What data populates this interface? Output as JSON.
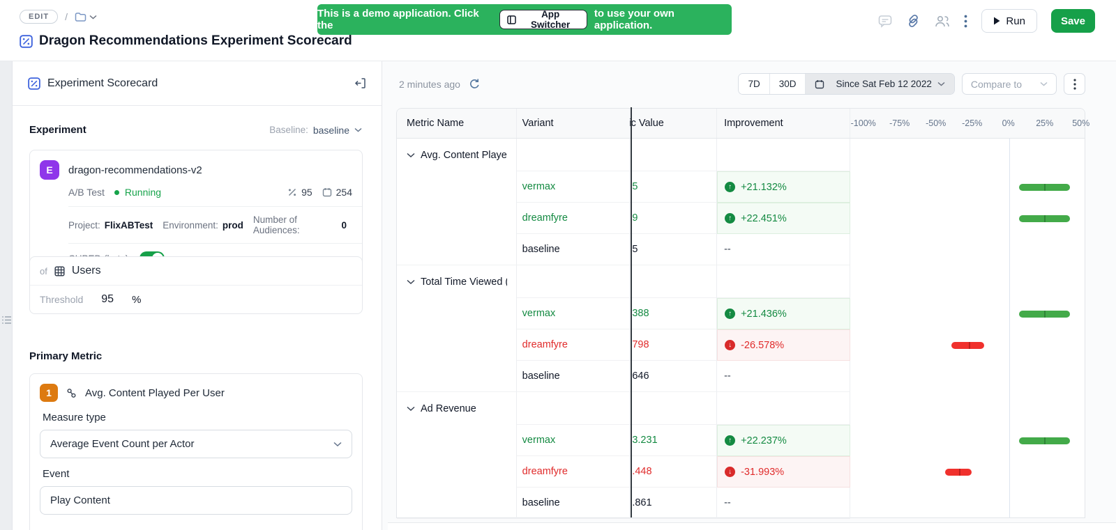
{
  "topbar": {
    "edit_badge": "EDIT",
    "breadcrumb_separator": "/",
    "banner": {
      "text_before": "This is a demo application. Click the",
      "button_label": "App Switcher",
      "text_after": "to use your own application."
    },
    "run_label": "Run",
    "save_label": "Save"
  },
  "page": {
    "title": "Dragon Recommendations Experiment Scorecard"
  },
  "left_panel": {
    "header": "Experiment Scorecard",
    "experiment": {
      "section_label": "Experiment",
      "baseline_label": "Baseline:",
      "baseline_value": "baseline",
      "badge": "E",
      "name": "dragon-recommendations-v2",
      "type": "A/B Test",
      "status": "Running",
      "percent_stat": "95",
      "days_stat": "254",
      "project_label": "Project:",
      "project_value": "FlixABTest",
      "environment_label": "Environment:",
      "environment_value": "prod",
      "audiences_label": "Number of Audiences:",
      "audiences_value": "0",
      "cuped_label": "CUPED (beta):",
      "cuped_on": true,
      "unit_prefix": "of",
      "unit_name": "Users",
      "threshold_label": "Threshold",
      "threshold_value": "95",
      "threshold_unit": "%"
    },
    "primary_metric": {
      "section_label": "Primary Metric",
      "badge": "1",
      "name": "Avg. Content Played Per User",
      "measure_type_label": "Measure type",
      "measure_type_value": "Average Event Count per Actor",
      "event_label": "Event",
      "event_value": "Play Content"
    }
  },
  "toolbar": {
    "last_updated": "2 minutes ago",
    "range_7d": "7D",
    "range_30d": "30D",
    "date_range": "Since Sat Feb 12 2022",
    "compare_placeholder": "Compare to"
  },
  "table": {
    "columns": [
      "Metric Name",
      "Variant",
      "Metric Value",
      "Improvement"
    ],
    "axis_ticks": [
      "-100%",
      "-75%",
      "-50%",
      "-25%",
      "0%",
      "25%",
      "50%"
    ],
    "axis_min": -100,
    "axis_max": 50,
    "groups": [
      {
        "name": "Avg. Content Played",
        "rows": [
          {
            "variant": "vermax",
            "tone": "green",
            "value": "5",
            "improvement": "+21.132%",
            "direction": "up",
            "ci_low": 7.5,
            "ci_high": 42.5,
            "mid": 25.0
          },
          {
            "variant": "dreamfyre",
            "tone": "green",
            "value": "9",
            "improvement": "+22.451%",
            "direction": "up",
            "ci_low": 7.5,
            "ci_high": 42.5,
            "mid": 25.0
          },
          {
            "variant": "baseline",
            "tone": "neutral",
            "value": "5",
            "improvement": "--",
            "direction": "none"
          }
        ]
      },
      {
        "name": "Total Time Viewed (",
        "rows": [
          {
            "variant": "vermax",
            "tone": "green",
            "value": "388",
            "improvement": "+21.436%",
            "direction": "up",
            "ci_low": 7.5,
            "ci_high": 42.5,
            "mid": 25.0
          },
          {
            "variant": "dreamfyre",
            "tone": "red",
            "value": "798",
            "improvement": "-26.578%",
            "direction": "down",
            "ci_low": -39.5,
            "ci_high": -16.5,
            "mid": -26.9
          },
          {
            "variant": "baseline",
            "tone": "neutral",
            "value": "646",
            "improvement": "--",
            "direction": "none"
          }
        ]
      },
      {
        "name": "Ad Revenue",
        "rows": [
          {
            "variant": "vermax",
            "tone": "green",
            "value": "3.231",
            "improvement": "+22.237%",
            "direction": "up",
            "ci_low": 7.5,
            "ci_high": 42.5,
            "mid": 25.0
          },
          {
            "variant": "dreamfyre",
            "tone": "red",
            "value": ".448",
            "improvement": "-31.993%",
            "direction": "down",
            "ci_low": -43.5,
            "ci_high": -25.2,
            "mid": -33.7
          },
          {
            "variant": "baseline",
            "tone": "neutral",
            "value": ".861",
            "improvement": "--",
            "direction": "none"
          }
        ]
      }
    ]
  },
  "colors": {
    "banner_green": "#2bb25d",
    "save_green": "#16a049",
    "running_green": "#16a34a",
    "positive_text": "#148a42",
    "negative_text": "#e02b2b",
    "bar_green": "#43aa49",
    "bar_red": "#f0312d",
    "badge_purple": "#8f36ea",
    "badge_orange": "#dd7a10",
    "accent_blue": "#3e63dd"
  }
}
